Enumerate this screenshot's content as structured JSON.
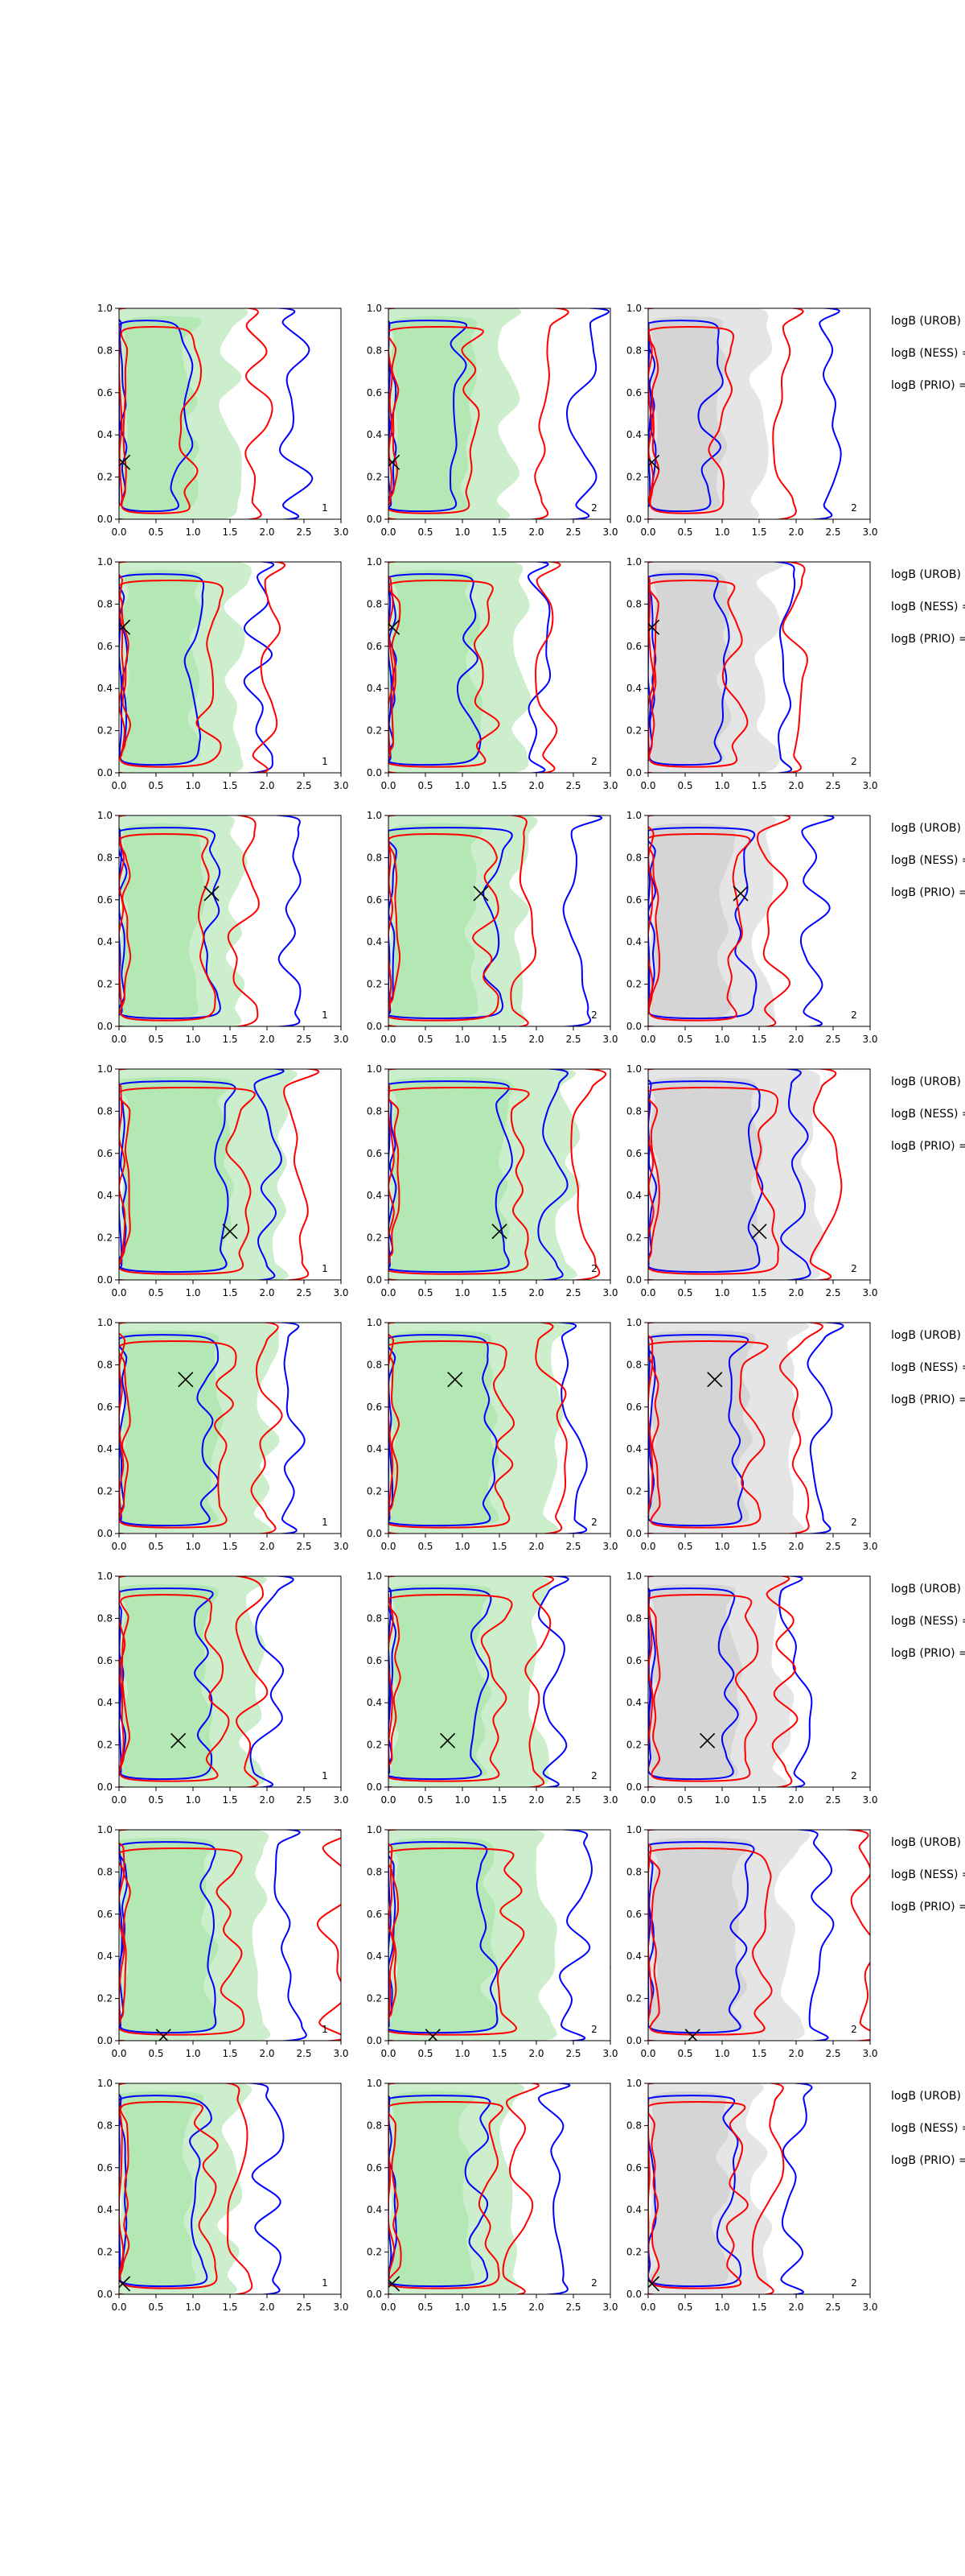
{
  "chart_data": {
    "type": "contour",
    "rows": 8,
    "cols": 3,
    "xlim": [
      0,
      3
    ],
    "ylim": [
      0,
      1
    ],
    "x_ticks": [
      "0.0",
      "0.5",
      "1.0",
      "1.5",
      "2.0",
      "2.5",
      "3.0"
    ],
    "y_ticks": [
      "0.0",
      "0.2",
      "0.4",
      "0.6",
      "0.8",
      "1.0"
    ],
    "panel_tags": [
      "1",
      "2",
      "2"
    ],
    "side_labels": [
      "logB (UROB)",
      "logB (NESS) =",
      "logB (PRIO) ="
    ],
    "markers": [
      {
        "x": 0.05,
        "y": 0.27
      },
      {
        "x": 0.05,
        "y": 0.69
      },
      {
        "x": 1.25,
        "y": 0.63
      },
      {
        "x": 1.5,
        "y": 0.23
      },
      {
        "x": 0.9,
        "y": 0.73
      },
      {
        "x": 0.8,
        "y": 0.22
      },
      {
        "x": 0.6,
        "y": 0.02
      },
      {
        "x": 0.05,
        "y": 0.05
      }
    ],
    "colors": {
      "blue": "#0000ff",
      "red": "#ff0000",
      "green_fill": "#9fe29f",
      "green_fill_inner": "#c6ecc6",
      "grey_fill": "#c8c8c8",
      "grey_fill_inner": "#e2e2e2",
      "marker": "#000000"
    }
  }
}
